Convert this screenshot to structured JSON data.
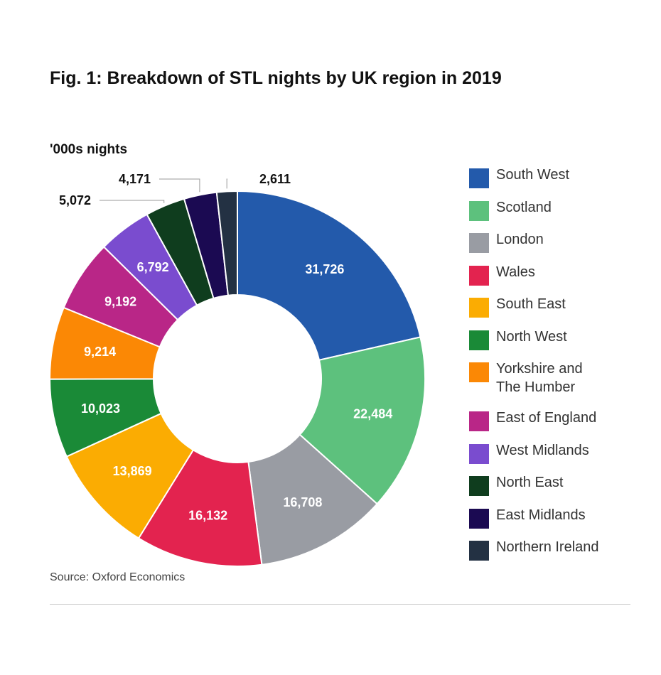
{
  "title": "Fig. 1: Breakdown of STL nights by UK region in 2019",
  "unit_label": "'000s nights",
  "source": "Source: Oxford Economics",
  "chart_data": {
    "type": "pie",
    "variant": "donut",
    "title": "Fig. 1: Breakdown of STL nights by UK region in 2019",
    "unit": "'000s nights",
    "legend_position": "right",
    "slices": [
      {
        "label": "South West",
        "value": 31726,
        "value_label": "31,726",
        "color": "#235aab"
      },
      {
        "label": "Scotland",
        "value": 22484,
        "value_label": "22,484",
        "color": "#5dc17d"
      },
      {
        "label": "London",
        "value": 16708,
        "value_label": "16,708",
        "color": "#999ca3"
      },
      {
        "label": "Wales",
        "value": 16132,
        "value_label": "16,132",
        "color": "#e3234f"
      },
      {
        "label": "South East",
        "value": 13869,
        "value_label": "13,869",
        "color": "#fbac02"
      },
      {
        "label": "North West",
        "value": 10023,
        "value_label": "10,023",
        "color": "#1a8a37"
      },
      {
        "label": "Yorkshire and The Humber",
        "value": 9214,
        "value_label": "9,214",
        "color": "#fb8805",
        "legend_lines": [
          "Yorkshire and",
          "The Humber"
        ]
      },
      {
        "label": "East of England",
        "value": 9192,
        "value_label": "9,192",
        "color": "#b92687"
      },
      {
        "label": "West Midlands",
        "value": 6792,
        "value_label": "6,792",
        "color": "#7a4ccf"
      },
      {
        "label": "North East",
        "value": 5072,
        "value_label": "5,072",
        "color": "#0f3d1e",
        "label_outside": true
      },
      {
        "label": "East Midlands",
        "value": 4171,
        "value_label": "4,171",
        "color": "#1b0a52",
        "label_outside": true
      },
      {
        "label": "Northern Ireland",
        "value": 2611,
        "value_label": "2,611",
        "color": "#233143",
        "label_outside": true
      }
    ]
  }
}
